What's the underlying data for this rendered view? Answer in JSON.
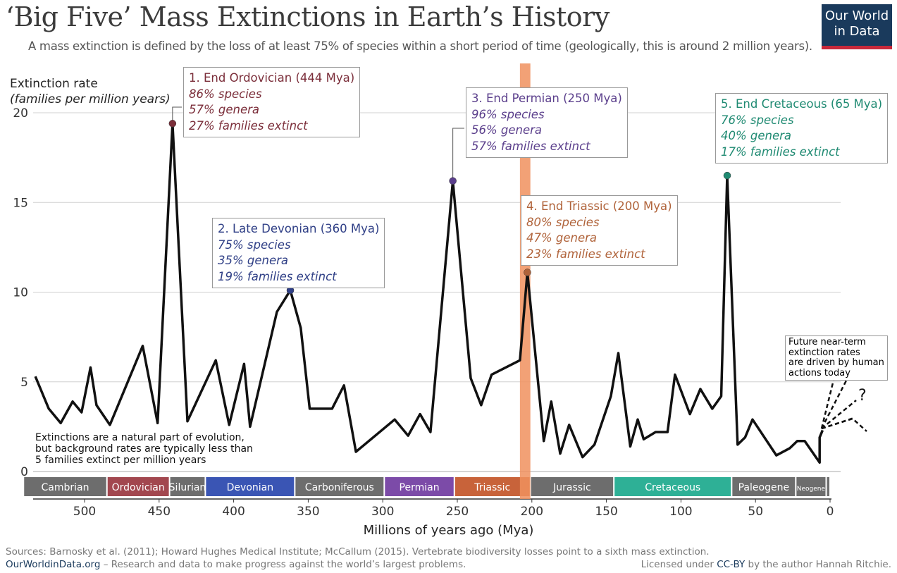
{
  "title": "‘Big Five’ Mass Extinctions in Earth’s History",
  "subtitle": "A mass extinction is defined by the loss of at least 75% of species within a short period of time (geologically, this is around 2 million years).",
  "logo": {
    "line1": "Our World",
    "line2": "in Data"
  },
  "footer": {
    "sources": "Sources: Barnosky et al. (2011); Howard Hughes Medical Institute; McCallum (2015). Vertebrate biodiversity losses point to a sixth mass extinction.",
    "site": "OurWorldinData.org",
    "tagline": " – Research and data to make progress against the world’s largest problems.",
    "license_pre": "Licensed under ",
    "license": "CC-BY",
    "license_post": " by the author Hannah Ritchie."
  },
  "chart_data": {
    "type": "line",
    "title": "‘Big Five’ Mass Extinctions in Earth’s History",
    "ylabel": "Extinction rate",
    "ylabel_sub": "(families per million years)",
    "xlabel": "Millions of years ago (Mya)",
    "xlim": [
      538,
      0
    ],
    "ylim": [
      0,
      20
    ],
    "xticks": [
      500,
      450,
      400,
      350,
      300,
      250,
      200,
      150,
      100,
      50,
      0
    ],
    "yticks": [
      0,
      5,
      10,
      15,
      20
    ],
    "grid": true,
    "series": [
      {
        "name": "Extinction rate",
        "color": "#111111",
        "x": [
          533,
          524,
          516,
          508,
          502,
          496,
          492,
          483,
          461,
          451,
          441,
          431,
          412,
          403,
          393,
          389,
          371,
          362,
          355,
          349,
          334,
          326,
          318,
          292,
          283,
          275,
          268,
          253,
          241,
          234,
          227,
          208,
          203,
          192,
          187,
          181,
          175,
          166,
          158,
          147,
          142,
          134,
          129,
          125,
          117,
          109,
          104,
          94,
          87,
          79,
          73,
          69,
          62,
          57,
          52,
          36,
          27,
          22,
          17,
          7,
          7,
          5
        ],
        "y": [
          5.3,
          3.5,
          2.7,
          3.9,
          3.3,
          5.8,
          3.7,
          2.6,
          7.0,
          2.7,
          19.4,
          2.8,
          6.2,
          2.6,
          6.0,
          2.5,
          8.9,
          10.1,
          8.0,
          3.5,
          3.5,
          4.8,
          1.1,
          2.9,
          2.0,
          3.2,
          2.2,
          16.2,
          5.2,
          3.7,
          5.4,
          6.2,
          11.1,
          1.7,
          3.9,
          1.0,
          2.6,
          0.8,
          1.5,
          4.2,
          6.6,
          1.4,
          2.9,
          1.8,
          2.2,
          2.2,
          5.4,
          3.2,
          4.6,
          3.5,
          4.2,
          16.5,
          1.5,
          1.9,
          2.9,
          0.9,
          1.3,
          1.7,
          1.7,
          0.5,
          1.9,
          2.3
        ]
      }
    ],
    "highlight_band": {
      "from": 208,
      "to": 201,
      "color": "#f0905e"
    },
    "events": [
      {
        "x": 441,
        "y": 19.4,
        "color": "#7b2e3a",
        "title": "1. End Ordovician (444 Mya)",
        "l1": "86% species",
        "l2": "57% genera",
        "l3": "27% families extinct"
      },
      {
        "x": 362,
        "y": 10.1,
        "color": "#2f3f86",
        "title": "2. Late Devonian (360 Mya)",
        "l1": "75% species",
        "l2": "35% genera",
        "l3": "19% families extinct"
      },
      {
        "x": 253,
        "y": 16.2,
        "color": "#5b3f8c",
        "title": "3. End Permian (250 Mya)",
        "l1": "96% species",
        "l2": "56% genera",
        "l3": "57% families extinct"
      },
      {
        "x": 203,
        "y": 11.1,
        "color": "#b0633a",
        "title": "4. End Triassic (200 Mya)",
        "l1": "80% species",
        "l2": "47% genera",
        "l3": "23% families extinct"
      },
      {
        "x": 69,
        "y": 16.5,
        "color": "#1f8a72",
        "title": "5. End Cretaceous (65 Mya)",
        "l1": "76% species",
        "l2": "40% genera",
        "l3": "17% families extinct"
      }
    ],
    "periods": [
      {
        "name": "Cambrian",
        "from": 541,
        "to": 485,
        "color": "#6d6d6d"
      },
      {
        "name": "Ordovician",
        "from": 485,
        "to": 443,
        "color": "#a2474f"
      },
      {
        "name": "Silurian",
        "from": 443,
        "to": 419,
        "color": "#6d6d6d"
      },
      {
        "name": "Devonian",
        "from": 419,
        "to": 359,
        "color": "#3a55b4"
      },
      {
        "name": "Carboniferous",
        "from": 359,
        "to": 299,
        "color": "#6d6d6d"
      },
      {
        "name": "Permian",
        "from": 299,
        "to": 252,
        "color": "#7c4ba8"
      },
      {
        "name": "Triassic",
        "from": 252,
        "to": 201,
        "color": "#c8633a"
      },
      {
        "name": "Jurassic",
        "from": 201,
        "to": 145,
        "color": "#6d6d6d"
      },
      {
        "name": "Cretaceous",
        "from": 145,
        "to": 66,
        "color": "#2eb096"
      },
      {
        "name": "Paleogene",
        "from": 66,
        "to": 23,
        "color": "#6d6d6d"
      },
      {
        "name": "Neogene",
        "from": 23,
        "to": 2.6,
        "color": "#6d6d6d"
      },
      {
        "name": "",
        "from": 2.6,
        "to": 0,
        "color": "#6d6d6d"
      }
    ],
    "annotations": {
      "background": [
        "Extinctions are a natural part of evolution,",
        "but background rates are typically less than",
        "5 families extinct per million years"
      ],
      "future": [
        "Future near-term",
        "extinction rates",
        "are driven by human",
        "actions today"
      ],
      "question": "?"
    }
  }
}
